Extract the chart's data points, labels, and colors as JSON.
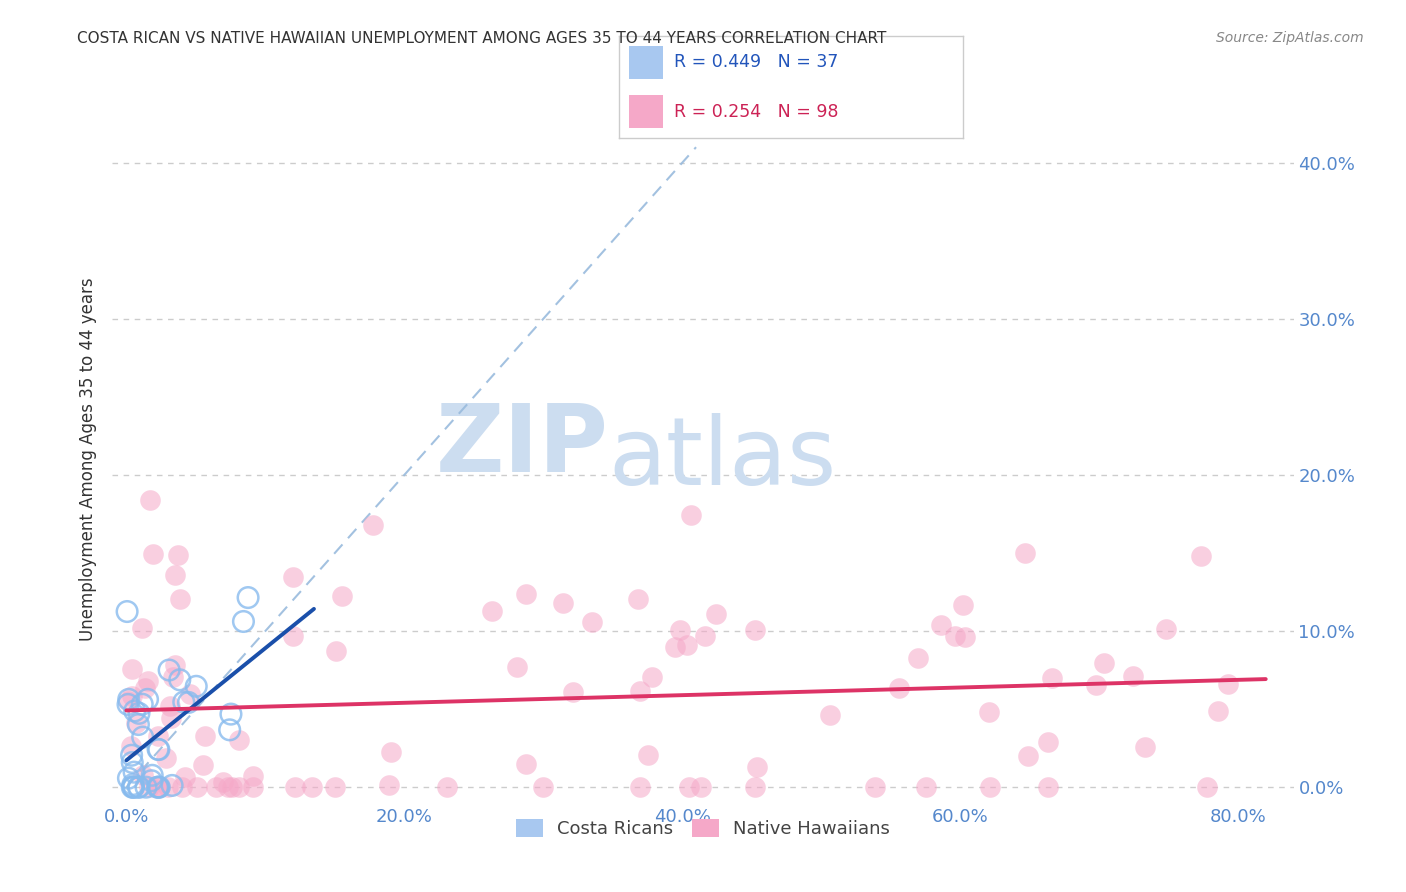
{
  "title": "COSTA RICAN VS NATIVE HAWAIIAN UNEMPLOYMENT AMONG AGES 35 TO 44 YEARS CORRELATION CHART",
  "source": "Source: ZipAtlas.com",
  "xtick_vals": [
    0,
    0.2,
    0.4,
    0.6,
    0.8
  ],
  "xtick_labels": [
    "0.0%",
    "20.0%",
    "40.0%",
    "60.0%",
    "80.0%"
  ],
  "ytick_vals": [
    0,
    0.1,
    0.2,
    0.3,
    0.4
  ],
  "ytick_labels": [
    "0.0%",
    "10.0%",
    "20.0%",
    "30.0%",
    "40.0%"
  ],
  "xlim": [
    -0.01,
    0.84
  ],
  "ylim": [
    -0.01,
    0.43
  ],
  "watermark_zip": "ZIP",
  "watermark_atlas": "atlas",
  "legend_cr_text": "R = 0.449   N = 37",
  "legend_nh_text": "R = 0.254   N = 98",
  "legend_cr_color": "#a8c8f0",
  "legend_nh_color": "#f5a8c8",
  "legend_cr_text_color": "#2255bb",
  "legend_nh_text_color": "#cc2255",
  "costa_rican_color": "#88bbee",
  "native_hawaiian_color": "#f5a8c8",
  "costa_rican_line_color": "#1a4faa",
  "native_hawaiian_line_color": "#dd3366",
  "reference_line_color": "#99bbdd",
  "grid_color": "#cccccc",
  "title_color": "#333333",
  "source_color": "#888888",
  "axis_color": "#5588cc",
  "ylabel_color": "#333333",
  "watermark_color": "#ccddf0",
  "bottom_legend_cr": "Costa Ricans",
  "bottom_legend_nh": "Native Hawaiians",
  "cr_seed": 42,
  "nh_seed": 7
}
